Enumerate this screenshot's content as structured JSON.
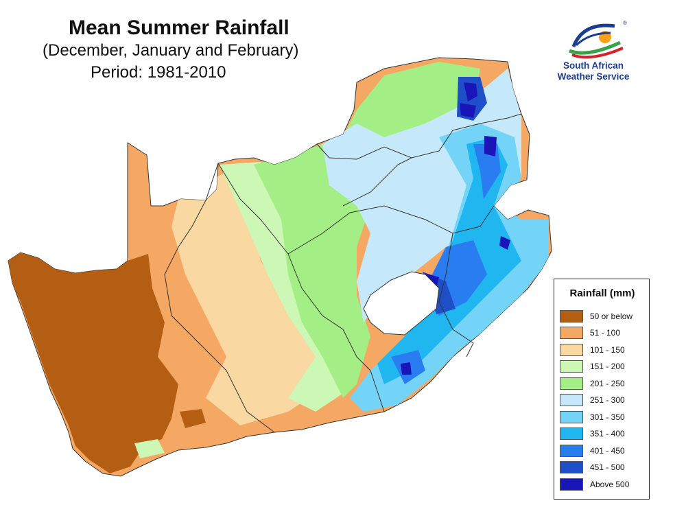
{
  "header": {
    "title": "Mean Summer Rainfall",
    "subtitle": "(December, January and February)",
    "period": "Period: 1981-2010"
  },
  "logo": {
    "line1": "South African",
    "line2": "Weather Service"
  },
  "legend": {
    "title": "Rainfall (mm)",
    "items": [
      {
        "label": "50 or below",
        "color": "#b45e14"
      },
      {
        "label": "51 - 100",
        "color": "#f5a863"
      },
      {
        "label": "101 - 150",
        "color": "#fad8a1"
      },
      {
        "label": "151 - 200",
        "color": "#ccf7b4"
      },
      {
        "label": "201 - 250",
        "color": "#a3ef85"
      },
      {
        "label": "251 - 300",
        "color": "#c5e9fb"
      },
      {
        "label": "301 - 350",
        "color": "#73d4f8"
      },
      {
        "label": "351 - 400",
        "color": "#20b6f0"
      },
      {
        "label": "401 - 450",
        "color": "#2a7df0"
      },
      {
        "label": "451 - 500",
        "color": "#1f4ec9"
      },
      {
        "label": "Above 500",
        "color": "#1a15b8"
      }
    ]
  }
}
